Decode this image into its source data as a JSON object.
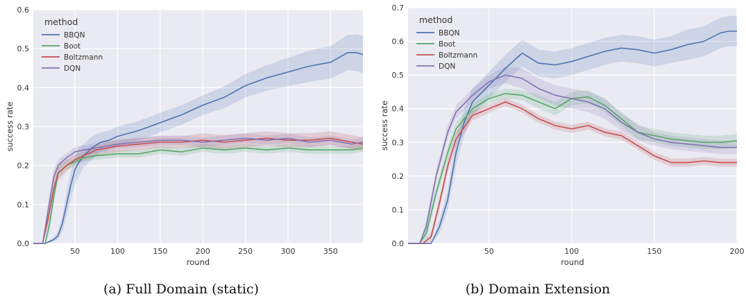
{
  "chart_data": [
    {
      "type": "line",
      "caption": "(a) Full Domain (static)",
      "xlabel": "round",
      "ylabel": "success rate",
      "xlim": [
        1,
        388
      ],
      "ylim": [
        0.0,
        0.6
      ],
      "xticks": [
        50,
        100,
        150,
        200,
        250,
        300,
        350
      ],
      "yticks": [
        0.0,
        0.1,
        0.2,
        0.3,
        0.4,
        0.5,
        0.6
      ],
      "grid": true,
      "legend_title": "method",
      "legend_position": "top-left",
      "shaded_bands": true,
      "series": [
        {
          "name": "BBQN",
          "color": "#4c72b0",
          "x": [
            1,
            15,
            25,
            30,
            35,
            40,
            45,
            50,
            55,
            60,
            70,
            80,
            90,
            100,
            125,
            150,
            175,
            200,
            225,
            250,
            275,
            300,
            325,
            350,
            370,
            380,
            388
          ],
          "y": [
            0.0,
            0.0,
            0.01,
            0.02,
            0.05,
            0.1,
            0.15,
            0.19,
            0.21,
            0.225,
            0.245,
            0.26,
            0.265,
            0.275,
            0.29,
            0.31,
            0.33,
            0.355,
            0.375,
            0.405,
            0.425,
            0.44,
            0.455,
            0.465,
            0.49,
            0.49,
            0.485
          ],
          "band": [
            0.0,
            0.0,
            0.005,
            0.01,
            0.02,
            0.03,
            0.035,
            0.035,
            0.035,
            0.03,
            0.03,
            0.025,
            0.025,
            0.025,
            0.025,
            0.025,
            0.025,
            0.025,
            0.028,
            0.03,
            0.033,
            0.036,
            0.04,
            0.042,
            0.045,
            0.047,
            0.048
          ]
        },
        {
          "name": "Boot",
          "color": "#55a868",
          "x": [
            1,
            15,
            20,
            25,
            30,
            40,
            50,
            60,
            75,
            100,
            125,
            150,
            175,
            200,
            225,
            250,
            275,
            300,
            325,
            350,
            375,
            388
          ],
          "y": [
            0.0,
            0.0,
            0.05,
            0.12,
            0.18,
            0.2,
            0.21,
            0.22,
            0.225,
            0.23,
            0.23,
            0.24,
            0.235,
            0.245,
            0.24,
            0.245,
            0.24,
            0.245,
            0.24,
            0.24,
            0.24,
            0.245
          ],
          "band": [
            0.0,
            0.0,
            0.02,
            0.02,
            0.015,
            0.012,
            0.01,
            0.01,
            0.01,
            0.01,
            0.01,
            0.01,
            0.01,
            0.01,
            0.01,
            0.01,
            0.01,
            0.01,
            0.01,
            0.01,
            0.01,
            0.01
          ]
        },
        {
          "name": "Boltzmann",
          "color": "#c44e52",
          "x": [
            1,
            12,
            18,
            25,
            30,
            40,
            50,
            60,
            75,
            100,
            125,
            150,
            175,
            200,
            225,
            250,
            275,
            300,
            325,
            350,
            375,
            388
          ],
          "y": [
            0.0,
            0.0,
            0.06,
            0.14,
            0.18,
            0.2,
            0.215,
            0.225,
            0.24,
            0.25,
            0.255,
            0.26,
            0.26,
            0.265,
            0.26,
            0.265,
            0.27,
            0.265,
            0.265,
            0.27,
            0.26,
            0.255
          ],
          "band": [
            0.0,
            0.0,
            0.02,
            0.025,
            0.02,
            0.015,
            0.012,
            0.012,
            0.015,
            0.015,
            0.015,
            0.015,
            0.015,
            0.018,
            0.018,
            0.018,
            0.018,
            0.018,
            0.018,
            0.018,
            0.018,
            0.018
          ]
        },
        {
          "name": "DQN",
          "color": "#8172b2",
          "x": [
            1,
            12,
            18,
            25,
            30,
            40,
            50,
            60,
            75,
            100,
            125,
            150,
            175,
            200,
            225,
            250,
            275,
            300,
            325,
            350,
            375,
            388
          ],
          "y": [
            0.0,
            0.0,
            0.08,
            0.17,
            0.2,
            0.22,
            0.235,
            0.24,
            0.245,
            0.255,
            0.26,
            0.265,
            0.265,
            0.26,
            0.265,
            0.27,
            0.265,
            0.27,
            0.26,
            0.265,
            0.255,
            0.26
          ],
          "band": [
            0.0,
            0.0,
            0.02,
            0.02,
            0.015,
            0.012,
            0.012,
            0.012,
            0.012,
            0.012,
            0.012,
            0.012,
            0.012,
            0.012,
            0.012,
            0.012,
            0.012,
            0.012,
            0.012,
            0.012,
            0.012,
            0.012
          ]
        }
      ]
    },
    {
      "type": "line",
      "caption": "(b) Domain Extension",
      "xlabel": "round",
      "ylabel": "success rate",
      "xlim": [
        1,
        200
      ],
      "ylim": [
        0.0,
        0.7
      ],
      "xticks": [
        50,
        100,
        150,
        200
      ],
      "yticks": [
        0.0,
        0.1,
        0.2,
        0.3,
        0.4,
        0.5,
        0.6,
        0.7
      ],
      "grid": true,
      "legend_title": "method",
      "legend_position": "top-left",
      "shaded_bands": true,
      "series": [
        {
          "name": "BBQN",
          "color": "#4c72b0",
          "x": [
            1,
            10,
            15,
            20,
            25,
            30,
            35,
            40,
            50,
            60,
            70,
            80,
            90,
            100,
            110,
            120,
            130,
            140,
            150,
            160,
            170,
            180,
            190,
            195,
            200
          ],
          "y": [
            0.0,
            0.0,
            0.0,
            0.05,
            0.13,
            0.27,
            0.36,
            0.42,
            0.47,
            0.52,
            0.565,
            0.535,
            0.53,
            0.54,
            0.555,
            0.57,
            0.58,
            0.575,
            0.565,
            0.575,
            0.59,
            0.6,
            0.625,
            0.63,
            0.63
          ],
          "band": [
            0.0,
            0.0,
            0.0,
            0.02,
            0.03,
            0.04,
            0.04,
            0.04,
            0.04,
            0.04,
            0.04,
            0.04,
            0.04,
            0.04,
            0.04,
            0.04,
            0.04,
            0.04,
            0.04,
            0.04,
            0.045,
            0.045,
            0.045,
            0.045,
            0.045
          ]
        },
        {
          "name": "Boot",
          "color": "#55a868",
          "x": [
            1,
            8,
            12,
            18,
            25,
            30,
            40,
            50,
            60,
            70,
            80,
            90,
            100,
            110,
            120,
            130,
            140,
            150,
            160,
            170,
            180,
            190,
            200
          ],
          "y": [
            0.0,
            0.0,
            0.03,
            0.15,
            0.27,
            0.34,
            0.4,
            0.43,
            0.445,
            0.44,
            0.42,
            0.4,
            0.43,
            0.435,
            0.41,
            0.37,
            0.33,
            0.32,
            0.31,
            0.305,
            0.3,
            0.3,
            0.305
          ],
          "band": [
            0.0,
            0.0,
            0.02,
            0.02,
            0.02,
            0.02,
            0.015,
            0.015,
            0.015,
            0.015,
            0.02,
            0.02,
            0.02,
            0.02,
            0.02,
            0.02,
            0.02,
            0.02,
            0.02,
            0.02,
            0.02,
            0.02,
            0.02
          ]
        },
        {
          "name": "Boltzmann",
          "color": "#c44e52",
          "x": [
            1,
            10,
            15,
            20,
            25,
            30,
            40,
            50,
            60,
            70,
            80,
            90,
            100,
            110,
            120,
            130,
            140,
            150,
            160,
            170,
            180,
            190,
            200
          ],
          "y": [
            0.0,
            0.0,
            0.02,
            0.12,
            0.23,
            0.31,
            0.38,
            0.4,
            0.42,
            0.4,
            0.37,
            0.35,
            0.34,
            0.35,
            0.33,
            0.32,
            0.29,
            0.26,
            0.24,
            0.24,
            0.245,
            0.24,
            0.24
          ],
          "band": [
            0.0,
            0.0,
            0.015,
            0.02,
            0.02,
            0.02,
            0.015,
            0.012,
            0.012,
            0.012,
            0.012,
            0.012,
            0.012,
            0.012,
            0.012,
            0.012,
            0.012,
            0.012,
            0.012,
            0.012,
            0.012,
            0.012,
            0.012
          ]
        },
        {
          "name": "DQN",
          "color": "#8172b2",
          "x": [
            1,
            8,
            12,
            18,
            25,
            30,
            40,
            50,
            60,
            70,
            80,
            90,
            100,
            110,
            120,
            130,
            140,
            150,
            160,
            170,
            180,
            190,
            200
          ],
          "y": [
            0.0,
            0.0,
            0.05,
            0.2,
            0.33,
            0.39,
            0.44,
            0.48,
            0.5,
            0.49,
            0.46,
            0.44,
            0.43,
            0.42,
            0.4,
            0.36,
            0.33,
            0.31,
            0.3,
            0.295,
            0.29,
            0.285,
            0.285
          ],
          "band": [
            0.0,
            0.0,
            0.02,
            0.02,
            0.02,
            0.02,
            0.02,
            0.02,
            0.025,
            0.03,
            0.03,
            0.03,
            0.03,
            0.03,
            0.03,
            0.025,
            0.025,
            0.02,
            0.02,
            0.02,
            0.02,
            0.02,
            0.02
          ]
        }
      ]
    }
  ]
}
